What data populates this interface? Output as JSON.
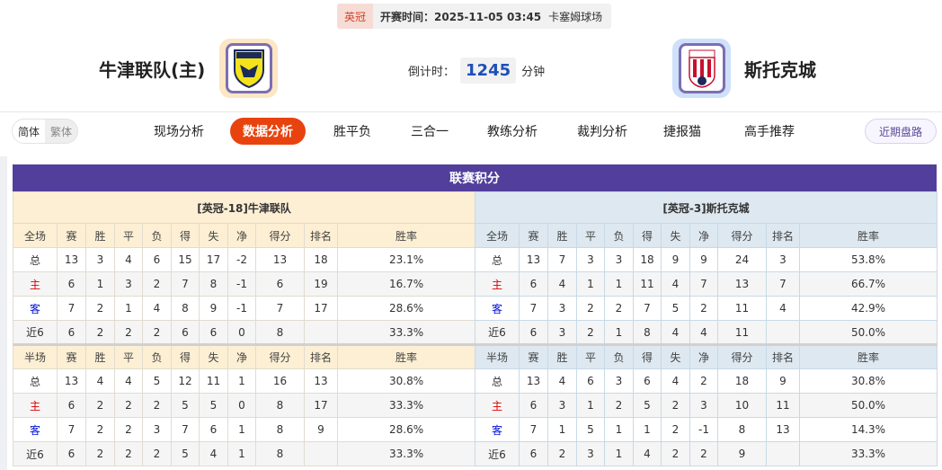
{
  "match": {
    "league": "英冠",
    "kickoff": "开赛时间：2025-11-05 03:45",
    "venue": "卡塞姆球场",
    "countdown_label": "倒计时：",
    "countdown_value": "1245",
    "countdown_unit": "分钟"
  },
  "home": {
    "name": "牛津联队(主)",
    "logo_text": "OXFORD UNITED"
  },
  "away": {
    "name": "斯托克城",
    "logo_text": "STOKE CITY"
  },
  "nav": {
    "lang": [
      "简体",
      "繁体"
    ],
    "items": [
      "现场分析",
      "数据分析",
      "胜平负",
      "三合一",
      "教练分析",
      "裁判分析",
      "捷报猫",
      "高手推荐"
    ],
    "active": "数据分析",
    "recent": "近期盘路"
  },
  "standings": {
    "title": "联赛积分",
    "columns_full": [
      "全场",
      "赛",
      "胜",
      "平",
      "负",
      "得",
      "失",
      "净",
      "得分",
      "排名",
      "胜率"
    ],
    "columns_half": [
      "半场",
      "赛",
      "胜",
      "平",
      "负",
      "得",
      "失",
      "净",
      "得分",
      "排名",
      "胜率"
    ],
    "home": {
      "title": "[英冠-18]牛津联队",
      "full": [
        [
          "总",
          "13",
          "3",
          "4",
          "6",
          "15",
          "17",
          "-2",
          "13",
          "18",
          "23.1%"
        ],
        [
          "主",
          "6",
          "1",
          "3",
          "2",
          "7",
          "8",
          "-1",
          "6",
          "19",
          "16.7%"
        ],
        [
          "客",
          "7",
          "2",
          "1",
          "4",
          "8",
          "9",
          "-1",
          "7",
          "17",
          "28.6%"
        ],
        [
          "近6",
          "6",
          "2",
          "2",
          "2",
          "6",
          "6",
          "0",
          "8",
          "",
          "33.3%"
        ]
      ],
      "half": [
        [
          "总",
          "13",
          "4",
          "4",
          "5",
          "12",
          "11",
          "1",
          "16",
          "13",
          "30.8%"
        ],
        [
          "主",
          "6",
          "2",
          "2",
          "2",
          "5",
          "5",
          "0",
          "8",
          "17",
          "33.3%"
        ],
        [
          "客",
          "7",
          "2",
          "2",
          "3",
          "7",
          "6",
          "1",
          "8",
          "9",
          "28.6%"
        ],
        [
          "近6",
          "6",
          "2",
          "2",
          "2",
          "5",
          "4",
          "1",
          "8",
          "",
          "33.3%"
        ]
      ]
    },
    "away": {
      "title": "[英冠-3]斯托克城",
      "full": [
        [
          "总",
          "13",
          "7",
          "3",
          "3",
          "18",
          "9",
          "9",
          "24",
          "3",
          "53.8%"
        ],
        [
          "主",
          "6",
          "4",
          "1",
          "1",
          "11",
          "4",
          "7",
          "13",
          "7",
          "66.7%"
        ],
        [
          "客",
          "7",
          "3",
          "2",
          "2",
          "7",
          "5",
          "2",
          "11",
          "4",
          "42.9%"
        ],
        [
          "近6",
          "6",
          "3",
          "2",
          "1",
          "8",
          "4",
          "4",
          "11",
          "",
          "50.0%"
        ]
      ],
      "half": [
        [
          "总",
          "13",
          "4",
          "6",
          "3",
          "6",
          "4",
          "2",
          "18",
          "9",
          "30.8%"
        ],
        [
          "主",
          "6",
          "3",
          "1",
          "2",
          "5",
          "2",
          "3",
          "10",
          "11",
          "50.0%"
        ],
        [
          "客",
          "7",
          "1",
          "5",
          "1",
          "1",
          "2",
          "-1",
          "8",
          "13",
          "14.3%"
        ],
        [
          "近6",
          "6",
          "2",
          "3",
          "1",
          "4",
          "2",
          "2",
          "9",
          "",
          "33.3%"
        ]
      ]
    }
  }
}
